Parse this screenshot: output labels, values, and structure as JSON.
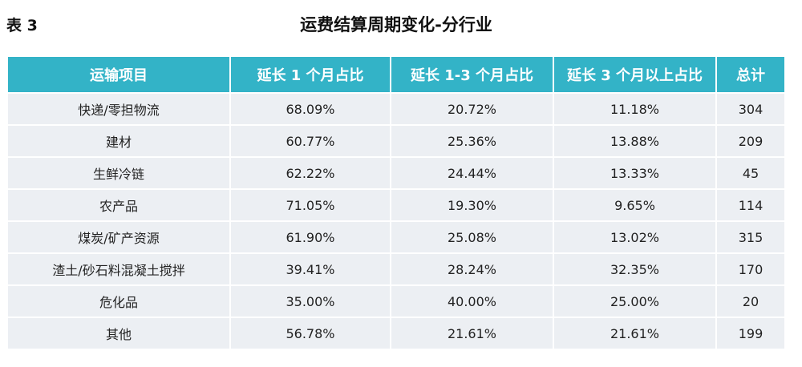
{
  "label": "表 3",
  "title": "运费结算周期变化-分行业",
  "colors": {
    "header_bg": "#33b3c7",
    "row_bg": "#eceff3",
    "grid": "#ffffff",
    "text": "#222222"
  },
  "chart_data": {
    "type": "table",
    "title": "运费结算周期变化-分行业",
    "columns": [
      "运输项目",
      "延长 1 个月占比",
      "延长 1-3 个月占比",
      "延长 3 个月以上占比",
      "总计"
    ],
    "rows": [
      [
        "快递/零担物流",
        "68.09%",
        "20.72%",
        "11.18%",
        "304"
      ],
      [
        "建材",
        "60.77%",
        "25.36%",
        "13.88%",
        "209"
      ],
      [
        "生鲜冷链",
        "62.22%",
        "24.44%",
        "13.33%",
        "45"
      ],
      [
        "农产品",
        "71.05%",
        "19.30%",
        "9.65%",
        "114"
      ],
      [
        "煤炭/矿产资源",
        "61.90%",
        "25.08%",
        "13.02%",
        "315"
      ],
      [
        "渣土/砂石料混凝土搅拌",
        "39.41%",
        "28.24%",
        "32.35%",
        "170"
      ],
      [
        "危化品",
        "35.00%",
        "40.00%",
        "25.00%",
        "20"
      ],
      [
        "其他",
        "56.78%",
        "21.61%",
        "21.61%",
        "199"
      ]
    ]
  }
}
